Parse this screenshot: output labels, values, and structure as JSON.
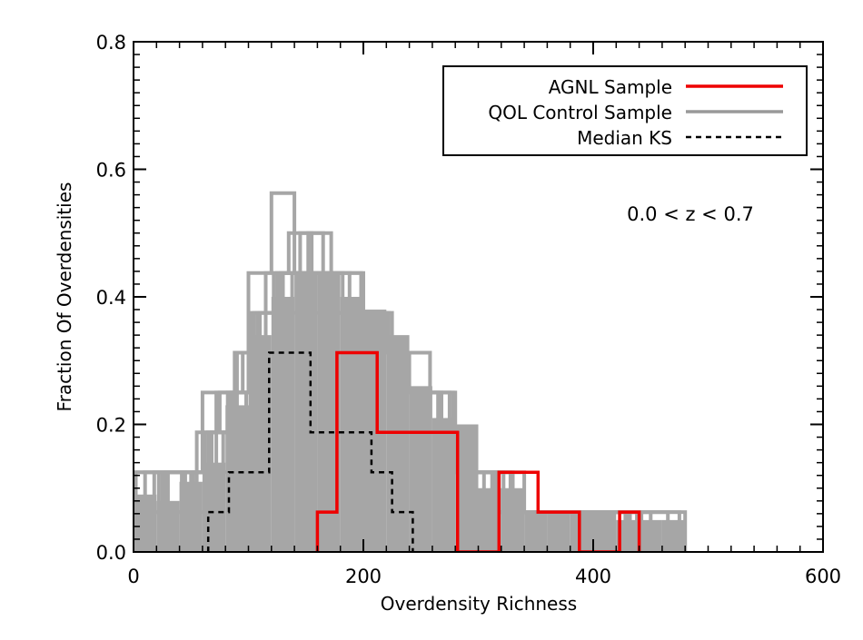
{
  "chart_data": {
    "type": "histogram",
    "title": "",
    "xlabel": "Overdensity Richness",
    "ylabel": "Fraction Of Overdensities",
    "xlim": [
      0,
      600
    ],
    "ylim": [
      0,
      0.8
    ],
    "x_ticks": [
      "0",
      "200",
      "400",
      "600"
    ],
    "y_ticks": [
      "0.0",
      "0.2",
      "0.4",
      "0.6",
      "0.8"
    ],
    "annotation": "0.0 < z < 0.7",
    "legend": {
      "position": "top-right",
      "entries": [
        {
          "label": "AGNL Sample",
          "color": "#ee0000",
          "style": "solid"
        },
        {
          "label": "QOL Control Sample",
          "color": "#999999",
          "style": "solid"
        },
        {
          "label": "Median KS",
          "color": "#000000",
          "style": "dashed"
        }
      ]
    },
    "series": [
      {
        "name": "AGNL Sample",
        "color": "#ee0000",
        "edges": [
          160,
          177,
          195,
          212,
          230,
          248,
          265,
          282,
          318,
          352,
          388,
          423,
          440
        ],
        "values": [
          0.0625,
          0.3125,
          0.3125,
          0.1875,
          0.1875,
          0.1875,
          0.1875,
          0.0,
          0.125,
          0.0625,
          0.0,
          0.0625
        ]
      },
      {
        "name": "Median KS",
        "color": "#000000",
        "edges": [
          65,
          83,
          100,
          118,
          136,
          154,
          172,
          190,
          207,
          225,
          243
        ],
        "values": [
          0.0625,
          0.125,
          0.125,
          0.3125,
          0.3125,
          0.1875,
          0.1875,
          0.1875,
          0.125,
          0.0625
        ]
      }
    ],
    "qol_realizations": {
      "name": "QOL Control Sample",
      "color": "#a6a6a6",
      "fill_edges": [
        0,
        20,
        40,
        60,
        80,
        100,
        120,
        140,
        160,
        180,
        200,
        220,
        240,
        260,
        280,
        300,
        320,
        340,
        360,
        380,
        400,
        420,
        440,
        460,
        480
      ],
      "fill_values": [
        0.09,
        0.08,
        0.11,
        0.14,
        0.23,
        0.34,
        0.4,
        0.44,
        0.44,
        0.4,
        0.38,
        0.34,
        0.26,
        0.21,
        0.2,
        0.1,
        0.1,
        0.06,
        0.06,
        0.06,
        0.06,
        0.05,
        0.05,
        0.05
      ],
      "outlines": [
        {
          "edges": [
            0,
            20,
            40,
            60,
            80,
            100,
            120,
            140,
            160,
            180,
            200,
            220,
            240,
            260,
            280,
            300,
            320,
            340,
            360,
            380,
            400,
            420,
            440,
            460,
            480
          ],
          "values": [
            0.125,
            0.125,
            0.125,
            0.25,
            0.25,
            0.4375,
            0.5625,
            0.4375,
            0.4375,
            0.4375,
            0.375,
            0.3125,
            0.25,
            0.25,
            0.125,
            0.125,
            0.125,
            0.0625,
            0.0625,
            0.0625,
            0.0625,
            0.0625,
            0.0625,
            0.0625
          ]
        },
        {
          "edges": [
            5,
            25,
            45,
            65,
            85,
            105,
            125,
            145,
            165,
            185,
            205,
            225,
            245,
            265,
            285,
            305,
            325,
            345,
            365,
            385,
            405,
            425,
            445,
            465
          ],
          "values": [
            0.0625,
            0.125,
            0.0625,
            0.1875,
            0.25,
            0.375,
            0.4375,
            0.5,
            0.375,
            0.375,
            0.375,
            0.25,
            0.25,
            0.125,
            0.125,
            0.0625,
            0.0625,
            0.0625,
            0.0625,
            0.0,
            0.0625,
            0.0625,
            0.0625
          ]
        },
        {
          "edges": [
            10,
            30,
            50,
            70,
            90,
            110,
            130,
            150,
            170,
            190,
            210,
            230,
            250,
            270,
            290,
            310,
            330,
            350,
            370,
            390,
            410,
            430,
            450
          ],
          "values": [
            0.125,
            0.0625,
            0.125,
            0.125,
            0.3125,
            0.375,
            0.4375,
            0.375,
            0.375,
            0.375,
            0.3125,
            0.25,
            0.1875,
            0.1875,
            0.125,
            0.125,
            0.0625,
            0.0625,
            0.0625,
            0.0625,
            0.0,
            0.0625
          ]
        },
        {
          "edges": [
            15,
            35,
            55,
            75,
            95,
            115,
            135,
            155,
            175,
            195,
            215,
            235,
            255,
            275,
            295,
            315,
            335,
            355,
            375,
            395,
            415,
            435,
            455,
            475
          ],
          "values": [
            0.0625,
            0.0625,
            0.1875,
            0.25,
            0.3125,
            0.4375,
            0.5,
            0.4375,
            0.375,
            0.3125,
            0.3125,
            0.25,
            0.25,
            0.125,
            0.125,
            0.0625,
            0.0625,
            0.0625,
            0.0625,
            0.0625,
            0.0625,
            0.0625,
            0.0625
          ]
        },
        {
          "edges": [
            2,
            22,
            42,
            62,
            82,
            102,
            122,
            142,
            162,
            182,
            202,
            222,
            242,
            262,
            282,
            302,
            322,
            342,
            362,
            382,
            402,
            422,
            442
          ],
          "values": [
            0.125,
            0.0625,
            0.125,
            0.1875,
            0.25,
            0.375,
            0.4375,
            0.4375,
            0.4375,
            0.375,
            0.375,
            0.25,
            0.1875,
            0.1875,
            0.125,
            0.125,
            0.0625,
            0.0625,
            0.0625,
            0.0625,
            0.0625,
            0.0625
          ]
        },
        {
          "edges": [
            8,
            28,
            48,
            68,
            88,
            108,
            128,
            148,
            168,
            188,
            208,
            228,
            248,
            268,
            288,
            308,
            328,
            348,
            368,
            388,
            408,
            428
          ],
          "values": [
            0.0625,
            0.125,
            0.125,
            0.1875,
            0.3125,
            0.375,
            0.4375,
            0.4375,
            0.4375,
            0.375,
            0.3125,
            0.25,
            0.25,
            0.1875,
            0.125,
            0.125,
            0.0625,
            0.0,
            0.0625,
            0.0625,
            0.0625
          ]
        },
        {
          "edges": [
            12,
            32,
            52,
            72,
            92,
            112,
            132,
            152,
            172,
            192,
            212,
            232,
            252,
            272,
            292,
            312,
            332,
            352,
            372,
            392,
            412,
            432
          ],
          "values": [
            0.0625,
            0.0625,
            0.125,
            0.25,
            0.25,
            0.3125,
            0.375,
            0.5,
            0.375,
            0.3125,
            0.3125,
            0.25,
            0.1875,
            0.125,
            0.125,
            0.0625,
            0.0625,
            0.0625,
            0.0625,
            0.0,
            0.0625
          ]
        },
        {
          "edges": [
            18,
            38,
            58,
            78,
            98,
            118,
            138,
            158,
            178,
            198,
            218,
            238,
            258,
            278,
            298,
            318,
            338,
            358,
            378,
            398,
            418,
            438
          ],
          "values": [
            0.125,
            0.125,
            0.125,
            0.1875,
            0.25,
            0.3125,
            0.4375,
            0.375,
            0.4375,
            0.375,
            0.3125,
            0.3125,
            0.25,
            0.1875,
            0.125,
            0.0625,
            0.0625,
            0.0625,
            0.0625,
            0.0625,
            0.0625
          ]
        }
      ]
    }
  }
}
